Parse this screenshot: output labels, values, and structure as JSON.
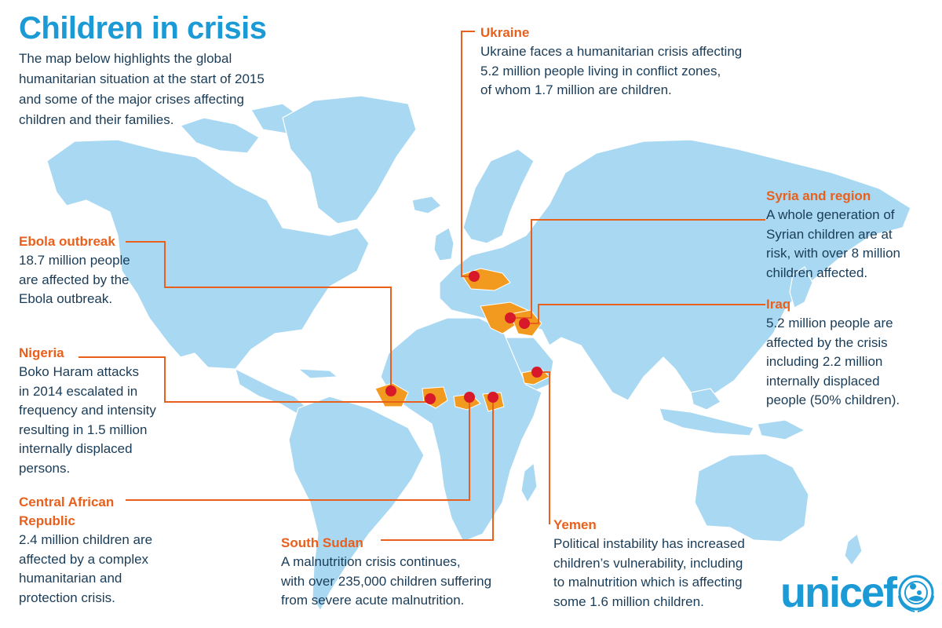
{
  "title": "Children in crisis",
  "intro": "The map below highlights the global humanitarian situation at the start of 2015 and some of the major crises affecting children and their families.",
  "callouts": {
    "ukraine": {
      "heading": "Ukraine",
      "body": "Ukraine faces a humanitarian crisis affecting\n5.2 million people living in conflict zones,\nof whom 1.7 million are children."
    },
    "syria": {
      "heading": "Syria and region",
      "body": "A whole generation of\nSyrian children are at\nrisk, with over 8 million\nchildren affected."
    },
    "iraq": {
      "heading": "Iraq",
      "body": "5.2 million people are\naffected by the crisis\nincluding 2.2 million\ninternally displaced\npeople (50% children)."
    },
    "ebola": {
      "heading": "Ebola outbreak",
      "body": "18.7 million people\nare affected by the\nEbola outbreak."
    },
    "nigeria": {
      "heading": "Nigeria",
      "body": "Boko Haram attacks\nin 2014 escalated in\nfrequency and intensity\nresulting in 1.5 million\ninternally displaced\npersons."
    },
    "car": {
      "heading": "Central African\nRepublic",
      "body": "2.4 million children are\naffected by a complex\nhumanitarian and\nprotection crisis."
    },
    "south_sudan": {
      "heading": "South Sudan",
      "body": "A malnutrition crisis continues,\nwith over 235,000 children suffering\nfrom severe acute malnutrition."
    },
    "yemen": {
      "heading": "Yemen",
      "body": "Political instability has increased\nchildren’s vulnerability, including\nto malnutrition which is affecting\nsome 1.6 million children."
    }
  },
  "logo": {
    "text": "unicef"
  },
  "colors": {
    "land": "#a9d8f2",
    "highlight": "#f29a1f",
    "marker": "#d7192a",
    "leader": "#e8601c",
    "title": "#1c9ad6",
    "body_text": "#1a3c57"
  }
}
